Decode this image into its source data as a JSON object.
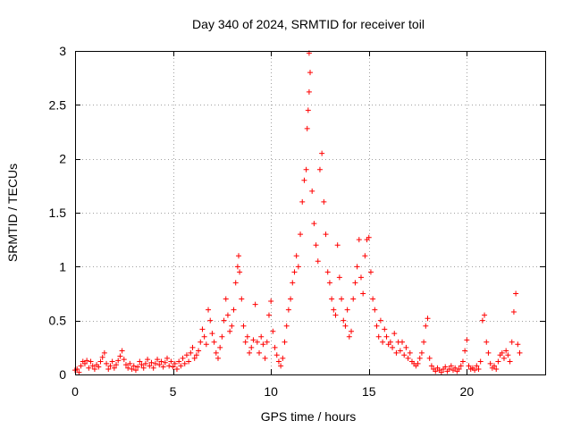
{
  "chart_data": {
    "type": "scatter",
    "title": "Day 340 of 2024, SRMTID for receiver toil",
    "xlabel": "GPS time / hours",
    "ylabel": "SRMTID / TECUs",
    "xlim": [
      0,
      24
    ],
    "ylim": [
      0,
      3
    ],
    "xticks": [
      0,
      5,
      10,
      15,
      20
    ],
    "xtick_labels": [
      "0",
      "5",
      "10",
      "15",
      "20"
    ],
    "yticks": [
      0,
      0.5,
      1,
      1.5,
      2,
      2.5,
      3
    ],
    "ytick_labels": [
      "0",
      "0.5",
      "1",
      "1.5",
      "2",
      "2.5",
      "3"
    ],
    "grid": true,
    "marker": "+",
    "color": "#ff0000",
    "series": [
      {
        "name": "SRMTID",
        "points": [
          [
            0.0,
            0.04
          ],
          [
            0.1,
            0.05
          ],
          [
            0.2,
            0.02
          ],
          [
            0.3,
            0.08
          ],
          [
            0.4,
            0.12
          ],
          [
            0.5,
            0.1
          ],
          [
            0.6,
            0.13
          ],
          [
            0.7,
            0.06
          ],
          [
            0.8,
            0.12
          ],
          [
            0.9,
            0.08
          ],
          [
            1.0,
            0.05
          ],
          [
            1.1,
            0.09
          ],
          [
            1.2,
            0.07
          ],
          [
            1.3,
            0.12
          ],
          [
            1.4,
            0.16
          ],
          [
            1.5,
            0.2
          ],
          [
            1.6,
            0.1
          ],
          [
            1.7,
            0.05
          ],
          [
            1.8,
            0.08
          ],
          [
            1.9,
            0.12
          ],
          [
            2.0,
            0.06
          ],
          [
            2.1,
            0.09
          ],
          [
            2.2,
            0.13
          ],
          [
            2.3,
            0.17
          ],
          [
            2.4,
            0.22
          ],
          [
            2.5,
            0.14
          ],
          [
            2.6,
            0.09
          ],
          [
            2.7,
            0.06
          ],
          [
            2.8,
            0.1
          ],
          [
            2.9,
            0.05
          ],
          [
            3.0,
            0.08
          ],
          [
            3.1,
            0.04
          ],
          [
            3.2,
            0.07
          ],
          [
            3.3,
            0.12
          ],
          [
            3.4,
            0.09
          ],
          [
            3.5,
            0.06
          ],
          [
            3.6,
            0.1
          ],
          [
            3.7,
            0.14
          ],
          [
            3.8,
            0.08
          ],
          [
            3.9,
            0.11
          ],
          [
            4.0,
            0.06
          ],
          [
            4.1,
            0.1
          ],
          [
            4.2,
            0.14
          ],
          [
            4.3,
            0.09
          ],
          [
            4.4,
            0.12
          ],
          [
            4.5,
            0.07
          ],
          [
            4.6,
            0.11
          ],
          [
            4.7,
            0.15
          ],
          [
            4.8,
            0.08
          ],
          [
            4.9,
            0.12
          ],
          [
            5.0,
            0.07
          ],
          [
            5.1,
            0.1
          ],
          [
            5.2,
            0.05
          ],
          [
            5.3,
            0.12
          ],
          [
            5.4,
            0.08
          ],
          [
            5.5,
            0.15
          ],
          [
            5.6,
            0.1
          ],
          [
            5.7,
            0.18
          ],
          [
            5.8,
            0.12
          ],
          [
            5.9,
            0.2
          ],
          [
            6.0,
            0.25
          ],
          [
            6.1,
            0.15
          ],
          [
            6.2,
            0.18
          ],
          [
            6.3,
            0.22
          ],
          [
            6.4,
            0.3
          ],
          [
            6.5,
            0.42
          ],
          [
            6.6,
            0.35
          ],
          [
            6.7,
            0.28
          ],
          [
            6.8,
            0.6
          ],
          [
            6.9,
            0.5
          ],
          [
            7.0,
            0.38
          ],
          [
            7.1,
            0.3
          ],
          [
            7.2,
            0.2
          ],
          [
            7.3,
            0.15
          ],
          [
            7.4,
            0.25
          ],
          [
            7.5,
            0.35
          ],
          [
            7.6,
            0.5
          ],
          [
            7.7,
            0.7
          ],
          [
            7.8,
            0.55
          ],
          [
            7.9,
            0.4
          ],
          [
            8.0,
            0.45
          ],
          [
            8.1,
            0.6
          ],
          [
            8.2,
            0.85
          ],
          [
            8.3,
            1.0
          ],
          [
            8.35,
            1.1
          ],
          [
            8.4,
            0.95
          ],
          [
            8.5,
            0.7
          ],
          [
            8.6,
            0.45
          ],
          [
            8.7,
            0.3
          ],
          [
            8.8,
            0.35
          ],
          [
            8.9,
            0.2
          ],
          [
            9.0,
            0.25
          ],
          [
            9.1,
            0.32
          ],
          [
            9.2,
            0.65
          ],
          [
            9.3,
            0.3
          ],
          [
            9.4,
            0.2
          ],
          [
            9.5,
            0.35
          ],
          [
            9.6,
            0.28
          ],
          [
            9.7,
            0.15
          ],
          [
            9.8,
            0.3
          ],
          [
            9.9,
            0.55
          ],
          [
            10.0,
            0.68
          ],
          [
            10.1,
            0.4
          ],
          [
            10.2,
            0.25
          ],
          [
            10.3,
            0.18
          ],
          [
            10.4,
            0.12
          ],
          [
            10.5,
            0.08
          ],
          [
            10.6,
            0.15
          ],
          [
            10.7,
            0.3
          ],
          [
            10.8,
            0.45
          ],
          [
            10.9,
            0.6
          ],
          [
            11.0,
            0.7
          ],
          [
            11.1,
            0.85
          ],
          [
            11.2,
            0.95
          ],
          [
            11.3,
            1.1
          ],
          [
            11.4,
            1.0
          ],
          [
            11.5,
            1.3
          ],
          [
            11.6,
            1.6
          ],
          [
            11.7,
            1.8
          ],
          [
            11.8,
            1.9
          ],
          [
            11.85,
            2.28
          ],
          [
            11.9,
            2.45
          ],
          [
            11.95,
            2.62
          ],
          [
            12.0,
            2.8
          ],
          [
            11.95,
            2.98
          ],
          [
            12.1,
            1.7
          ],
          [
            12.2,
            1.4
          ],
          [
            12.3,
            1.2
          ],
          [
            12.4,
            1.05
          ],
          [
            12.5,
            1.9
          ],
          [
            12.6,
            2.05
          ],
          [
            12.7,
            1.6
          ],
          [
            12.8,
            1.3
          ],
          [
            12.9,
            0.95
          ],
          [
            13.0,
            0.85
          ],
          [
            13.1,
            0.7
          ],
          [
            13.2,
            0.6
          ],
          [
            13.3,
            0.55
          ],
          [
            13.4,
            1.2
          ],
          [
            13.5,
            0.9
          ],
          [
            13.6,
            0.7
          ],
          [
            13.7,
            0.5
          ],
          [
            13.8,
            0.45
          ],
          [
            13.9,
            0.6
          ],
          [
            14.0,
            0.35
          ],
          [
            14.1,
            0.4
          ],
          [
            14.2,
            0.7
          ],
          [
            14.3,
            0.85
          ],
          [
            14.4,
            1.0
          ],
          [
            14.5,
            1.25
          ],
          [
            14.6,
            0.9
          ],
          [
            14.7,
            0.75
          ],
          [
            14.8,
            1.1
          ],
          [
            14.9,
            1.25
          ],
          [
            15.0,
            1.27
          ],
          [
            15.1,
            0.95
          ],
          [
            15.2,
            0.7
          ],
          [
            15.3,
            0.6
          ],
          [
            15.4,
            0.45
          ],
          [
            15.5,
            0.35
          ],
          [
            15.6,
            0.5
          ],
          [
            15.7,
            0.3
          ],
          [
            15.8,
            0.42
          ],
          [
            15.9,
            0.35
          ],
          [
            16.0,
            0.28
          ],
          [
            16.1,
            0.3
          ],
          [
            16.2,
            0.25
          ],
          [
            16.3,
            0.38
          ],
          [
            16.4,
            0.2
          ],
          [
            16.5,
            0.3
          ],
          [
            16.6,
            0.22
          ],
          [
            16.7,
            0.3
          ],
          [
            16.8,
            0.18
          ],
          [
            16.9,
            0.25
          ],
          [
            17.0,
            0.15
          ],
          [
            17.1,
            0.2
          ],
          [
            17.2,
            0.12
          ],
          [
            17.3,
            0.1
          ],
          [
            17.4,
            0.08
          ],
          [
            17.5,
            0.1
          ],
          [
            17.6,
            0.15
          ],
          [
            17.7,
            0.2
          ],
          [
            17.8,
            0.3
          ],
          [
            17.9,
            0.45
          ],
          [
            18.0,
            0.52
          ],
          [
            18.1,
            0.15
          ],
          [
            18.2,
            0.08
          ],
          [
            18.3,
            0.05
          ],
          [
            18.4,
            0.03
          ],
          [
            18.5,
            0.06
          ],
          [
            18.6,
            0.04
          ],
          [
            18.7,
            0.02
          ],
          [
            18.8,
            0.05
          ],
          [
            18.9,
            0.07
          ],
          [
            19.0,
            0.03
          ],
          [
            19.1,
            0.05
          ],
          [
            19.2,
            0.08
          ],
          [
            19.3,
            0.04
          ],
          [
            19.4,
            0.06
          ],
          [
            19.5,
            0.03
          ],
          [
            19.6,
            0.05
          ],
          [
            19.7,
            0.08
          ],
          [
            19.8,
            0.12
          ],
          [
            19.9,
            0.22
          ],
          [
            20.0,
            0.32
          ],
          [
            20.1,
            0.08
          ],
          [
            20.2,
            0.05
          ],
          [
            20.3,
            0.06
          ],
          [
            20.4,
            0.04
          ],
          [
            20.5,
            0.08
          ],
          [
            20.6,
            0.05
          ],
          [
            20.7,
            0.12
          ],
          [
            20.8,
            0.5
          ],
          [
            20.9,
            0.55
          ],
          [
            21.0,
            0.3
          ],
          [
            21.1,
            0.2
          ],
          [
            21.2,
            0.1
          ],
          [
            21.3,
            0.06
          ],
          [
            21.4,
            0.08
          ],
          [
            21.5,
            0.05
          ],
          [
            21.6,
            0.12
          ],
          [
            21.7,
            0.18
          ],
          [
            21.8,
            0.2
          ],
          [
            21.9,
            0.15
          ],
          [
            22.0,
            0.22
          ],
          [
            22.1,
            0.18
          ],
          [
            22.2,
            0.12
          ],
          [
            22.3,
            0.3
          ],
          [
            22.4,
            0.58
          ],
          [
            22.5,
            0.75
          ],
          [
            22.6,
            0.28
          ],
          [
            22.7,
            0.2
          ]
        ]
      }
    ]
  }
}
